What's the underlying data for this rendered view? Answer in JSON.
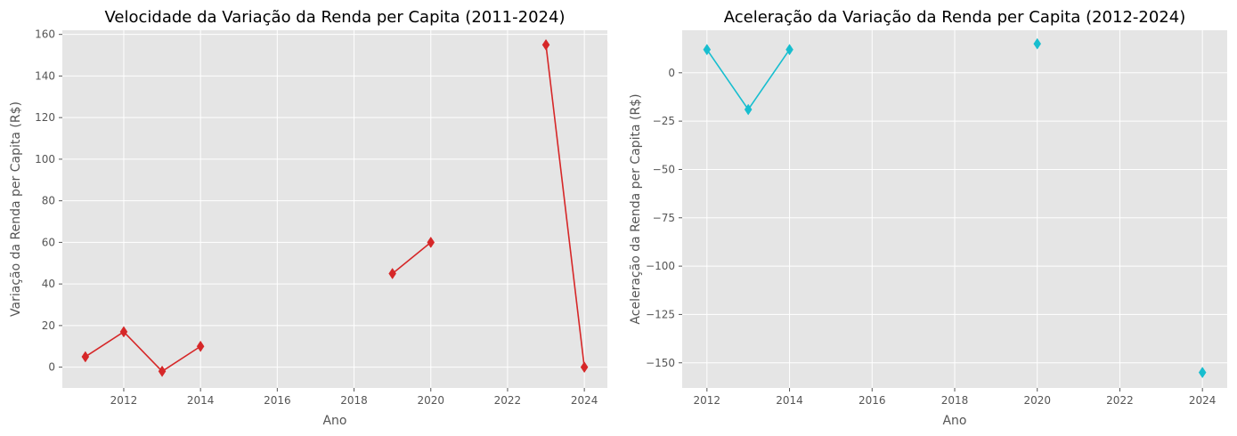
{
  "chart_data": [
    {
      "type": "line",
      "title": "Velocidade da Variação da Renda per Capita (2011-2024)",
      "xlabel": "Ano",
      "ylabel": "Variação da Renda per Capita (R$)",
      "xlim": [
        2010.4,
        2024.6
      ],
      "ylim": [
        -10,
        162
      ],
      "xticks": [
        2012,
        2014,
        2016,
        2018,
        2020,
        2022,
        2024
      ],
      "yticks": [
        0,
        20,
        40,
        60,
        80,
        100,
        120,
        140,
        160
      ],
      "grid": true,
      "color": "#d62728",
      "marker": "diamond",
      "series": [
        {
          "x": [
            2011,
            2012,
            2013,
            2014,
            2015,
            2016,
            2017,
            2018,
            2019,
            2020,
            2021,
            2022,
            2023,
            2024
          ],
          "values": [
            5,
            17,
            -2,
            10,
            null,
            null,
            null,
            null,
            45,
            60,
            null,
            null,
            155,
            0
          ]
        }
      ]
    },
    {
      "type": "line",
      "title": "Aceleração da Variação da Renda per Capita (2012-2024)",
      "xlabel": "Ano",
      "ylabel": "Aceleração da Renda per Capita (R$)",
      "xlim": [
        2011.4,
        2024.6
      ],
      "ylim": [
        -163,
        22
      ],
      "xticks": [
        2012,
        2014,
        2016,
        2018,
        2020,
        2022,
        2024
      ],
      "yticks": [
        0,
        -25,
        -50,
        -75,
        -100,
        -125,
        -150
      ],
      "grid": true,
      "color": "#17becf",
      "marker": "diamond",
      "series": [
        {
          "x": [
            2012,
            2013,
            2014,
            2015,
            2016,
            2017,
            2018,
            2019,
            2020,
            2021,
            2022,
            2023,
            2024
          ],
          "values": [
            12,
            -19,
            12,
            null,
            null,
            null,
            null,
            null,
            15,
            null,
            null,
            null,
            -155
          ]
        }
      ]
    }
  ]
}
